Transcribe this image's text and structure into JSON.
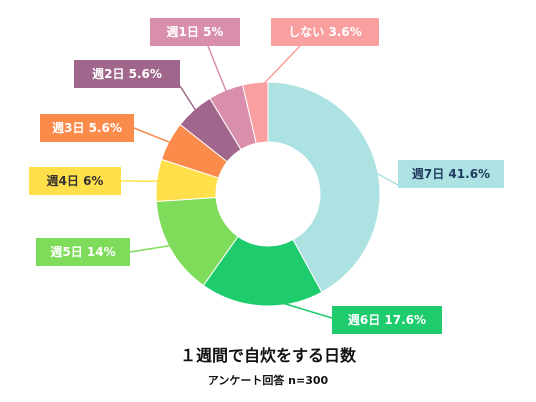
{
  "chart_data": {
    "type": "pie",
    "variant": "donut",
    "title": "１週間で自炊をする日数",
    "subtitle": "アンケート回答 n=300",
    "slices": [
      {
        "label": "週7日 41.6%",
        "value": 41.6,
        "color": "#ade2e3",
        "text_color": "#1f3a5f"
      },
      {
        "label": "週6日 17.6%",
        "value": 17.6,
        "color": "#1ecb6d",
        "text_color": "#ffffff"
      },
      {
        "label": "週5日 14%",
        "value": 14,
        "color": "#7fdc5a",
        "text_color": "#ffffff"
      },
      {
        "label": "週4日 6%",
        "value": 6,
        "color": "#ffe04a",
        "text_color": "#333333"
      },
      {
        "label": "週3日 5.6%",
        "value": 5.6,
        "color": "#fb8b4b",
        "text_color": "#ffffff"
      },
      {
        "label": "週2日 5.6%",
        "value": 5.6,
        "color": "#a1668c",
        "text_color": "#ffffff"
      },
      {
        "label": "週1日 5%",
        "value": 5,
        "color": "#d98fac",
        "text_color": "#ffffff"
      },
      {
        "label": "しない 3.6%",
        "value": 3.6,
        "color": "#f99f9f",
        "text_color": "#ffffff"
      }
    ]
  }
}
